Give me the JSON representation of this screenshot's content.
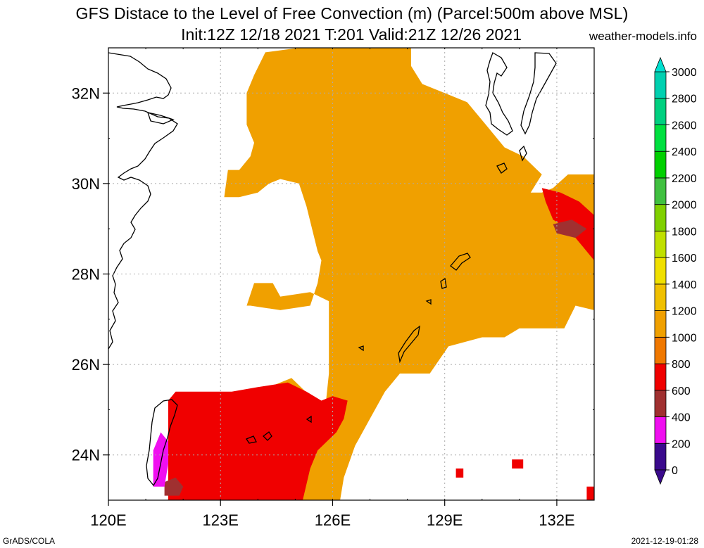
{
  "title": "GFS Distace to the Level of Free Convection (m) (Parcel:500m above MSL)",
  "subtitle": "Init:12Z 12/18 2021 T:201 Valid:21Z 12/26 2021",
  "credit": "weather-models.info",
  "footer_left": "GrADS/COLA",
  "footer_right": "2021-12-19-01:28",
  "chart_data": {
    "type": "heatmap",
    "xlim": [
      120,
      133
    ],
    "ylim": [
      23,
      33
    ],
    "x_ticks": [
      {
        "value": 120,
        "label": "120E"
      },
      {
        "value": 123,
        "label": "123E"
      },
      {
        "value": 126,
        "label": "126E"
      },
      {
        "value": 129,
        "label": "129E"
      },
      {
        "value": 132,
        "label": "132E"
      }
    ],
    "y_ticks": [
      {
        "value": 24,
        "label": "24N"
      },
      {
        "value": 26,
        "label": "26N"
      },
      {
        "value": 28,
        "label": "28N"
      },
      {
        "value": 30,
        "label": "30N"
      },
      {
        "value": 32,
        "label": "32N"
      }
    ],
    "grid": true,
    "colorbar": {
      "levels": [
        "0",
        "200",
        "400",
        "600",
        "800",
        "1000",
        "1200",
        "1400",
        "1600",
        "1800",
        "2000",
        "2200",
        "2400",
        "2600",
        "2800",
        "3000"
      ],
      "colors": [
        "#3a0a8c",
        "#f00ff0",
        "#a03030",
        "#f00000",
        "#f07800",
        "#f0a000",
        "#f0c000",
        "#f0e000",
        "#c0e000",
        "#80d000",
        "#40c040",
        "#00d000",
        "#00e040",
        "#00d080",
        "#00d0b0",
        "#00e0d0"
      ]
    },
    "fields": [
      {
        "name": "orange_main",
        "color": "#f0a000",
        "polygon": [
          [
            125.1,
            33
          ],
          [
            127.6,
            33
          ],
          [
            128.1,
            33
          ],
          [
            128.1,
            32.6
          ],
          [
            128.4,
            32.2
          ],
          [
            129,
            32
          ],
          [
            129.6,
            31.8
          ],
          [
            130.1,
            31.3
          ],
          [
            130.6,
            30.8
          ],
          [
            131.1,
            30.6
          ],
          [
            131.6,
            30.2
          ],
          [
            131.3,
            29.8
          ],
          [
            131.6,
            29.8
          ],
          [
            131.9,
            29.9
          ],
          [
            132.3,
            30.2
          ],
          [
            133,
            30.2
          ],
          [
            133,
            27.2
          ],
          [
            132.5,
            27.3
          ],
          [
            132.2,
            26.8
          ],
          [
            131,
            26.8
          ],
          [
            130.6,
            26.6
          ],
          [
            130,
            26.6
          ],
          [
            129.1,
            26.4
          ],
          [
            128.6,
            25.8
          ],
          [
            127.8,
            25.8
          ],
          [
            127.4,
            25.4
          ],
          [
            127,
            24.8
          ],
          [
            126.6,
            24.2
          ],
          [
            126.3,
            23.5
          ],
          [
            126.2,
            23
          ],
          [
            121.6,
            23
          ],
          [
            121.6,
            24.5
          ],
          [
            121.8,
            25.2
          ],
          [
            121.8,
            25.3
          ],
          [
            124,
            25.4
          ],
          [
            124.9,
            25.7
          ],
          [
            125.4,
            25.3
          ],
          [
            125.8,
            25
          ],
          [
            125.9,
            25.8
          ],
          [
            125.9,
            27.4
          ],
          [
            125.4,
            27.6
          ],
          [
            124.6,
            27.5
          ],
          [
            124.4,
            27.8
          ],
          [
            123.9,
            27.8
          ],
          [
            123.7,
            27.3
          ],
          [
            123.8,
            27.3
          ],
          [
            124.6,
            27.2
          ],
          [
            125.4,
            27.3
          ],
          [
            125.6,
            27.8
          ],
          [
            125.7,
            28.3
          ],
          [
            125.6,
            28.5
          ],
          [
            125.3,
            29.5
          ],
          [
            125.1,
            30
          ],
          [
            124.6,
            30.1
          ],
          [
            124.3,
            30
          ],
          [
            124,
            29.8
          ],
          [
            123.5,
            29.7
          ],
          [
            123.1,
            29.7
          ],
          [
            123.2,
            30.3
          ],
          [
            123.5,
            30.3
          ],
          [
            123.8,
            30.6
          ],
          [
            123.9,
            30.9
          ],
          [
            123.7,
            31.3
          ],
          [
            123.7,
            32
          ],
          [
            123.9,
            32.4
          ],
          [
            124.2,
            32.9
          ]
        ]
      },
      {
        "name": "red_south",
        "color": "#f00000",
        "polygon": [
          [
            121.6,
            23
          ],
          [
            125.2,
            23
          ],
          [
            125.4,
            23.7
          ],
          [
            125.6,
            24.1
          ],
          [
            126.1,
            24.5
          ],
          [
            126.3,
            24.8
          ],
          [
            126.4,
            25.2
          ],
          [
            126,
            25.3
          ],
          [
            125.7,
            25.2
          ],
          [
            125.3,
            25.4
          ],
          [
            124.8,
            25.6
          ],
          [
            124,
            25.5
          ],
          [
            123.3,
            25.4
          ],
          [
            122.7,
            25.4
          ],
          [
            121.8,
            25.4
          ],
          [
            121.6,
            25.2
          ],
          [
            121.6,
            24.5
          ]
        ]
      },
      {
        "name": "red_east",
        "color": "#f00000",
        "polygon": [
          [
            131.6,
            29.9
          ],
          [
            132.1,
            29.8
          ],
          [
            132.6,
            29.6
          ],
          [
            133,
            29.3
          ],
          [
            133,
            28.3
          ],
          [
            132.7,
            28.6
          ],
          [
            132.3,
            29
          ],
          [
            131.9,
            29.2
          ],
          [
            131.7,
            29.6
          ]
        ]
      },
      {
        "name": "brown_east",
        "color": "#a03030",
        "polygon": [
          [
            131.9,
            29.1
          ],
          [
            132.4,
            29.2
          ],
          [
            132.8,
            29.0
          ],
          [
            132.5,
            28.8
          ],
          [
            132.0,
            28.9
          ]
        ]
      },
      {
        "name": "brown_south",
        "color": "#a03030",
        "polygon": [
          [
            121.5,
            23.1
          ],
          [
            121.9,
            23.1
          ],
          [
            122.0,
            23.3
          ],
          [
            121.8,
            23.5
          ],
          [
            121.5,
            23.4
          ]
        ]
      },
      {
        "name": "magenta_south",
        "color": "#f00ff0",
        "polygon": [
          [
            121.2,
            23.3
          ],
          [
            121.5,
            23.3
          ],
          [
            121.6,
            23.8
          ],
          [
            121.6,
            24.3
          ],
          [
            121.4,
            24.5
          ],
          [
            121.2,
            24.1
          ]
        ]
      },
      {
        "name": "red_cell_1",
        "color": "#f00000",
        "polygon": [
          [
            129.3,
            23.7
          ],
          [
            129.5,
            23.7
          ],
          [
            129.5,
            23.5
          ],
          [
            129.3,
            23.5
          ]
        ]
      },
      {
        "name": "red_cell_2",
        "color": "#f00000",
        "polygon": [
          [
            130.8,
            23.9
          ],
          [
            131.1,
            23.9
          ],
          [
            131.1,
            23.7
          ],
          [
            130.8,
            23.7
          ]
        ]
      },
      {
        "name": "red_cell_3",
        "color": "#f00000",
        "polygon": [
          [
            132.8,
            23.3
          ],
          [
            133,
            23.3
          ],
          [
            133,
            23.0
          ],
          [
            132.8,
            23.0
          ]
        ]
      }
    ]
  }
}
